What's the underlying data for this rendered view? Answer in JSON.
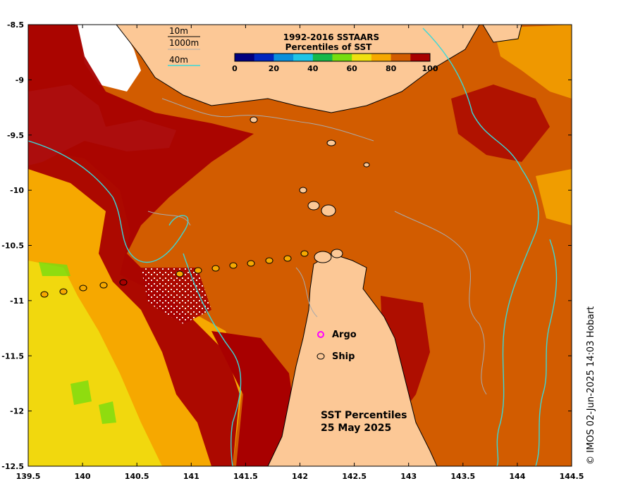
{
  "map": {
    "title_line1": "SST Percentiles",
    "title_line2": "25 May 2025",
    "copyright": "© IMOS 02-Jun-2025 14:03 Hobart",
    "lon_ticks": [
      "139.5",
      "140",
      "140.5",
      "141",
      "141.5",
      "142",
      "142.5",
      "143",
      "143.5",
      "144",
      "144.5"
    ],
    "lat_ticks": [
      "-8.5",
      "-9",
      "-9.5",
      "-10",
      "-10.5",
      "-11",
      "-11.5",
      "-12",
      "-12.5"
    ],
    "lon_range": [
      139.5,
      144.5
    ],
    "lat_range": [
      -12.5,
      -8.5
    ]
  },
  "colorbar": {
    "title_line1": "1992-2016 SSTAARS",
    "title_line2": "Percentiles of SST",
    "tick_labels": [
      "0",
      "20",
      "40",
      "60",
      "80",
      "100"
    ],
    "colors": [
      "#00007f",
      "#0026bf",
      "#0a8fdc",
      "#1fc4e6",
      "#18b84a",
      "#77dd10",
      "#f0e010",
      "#f6a800",
      "#d25c00",
      "#a80000"
    ]
  },
  "depth_legend": {
    "items": [
      "10m",
      "1000m",
      "40m"
    ],
    "colors": [
      "#000000",
      "#aaaaaa",
      "#3ad8d8"
    ]
  },
  "markers": {
    "argo_label": "Argo",
    "ship_label": "Ship",
    "argo_color": "#ff00ff",
    "ship_track_color": "#f6a800"
  },
  "colors": {
    "land": "#fcc896",
    "missing": "#ffffff",
    "p80_90": "#d25c00",
    "p90_100": "#a80000",
    "p70_80": "#f6a800",
    "p60_70": "#f0e010"
  }
}
